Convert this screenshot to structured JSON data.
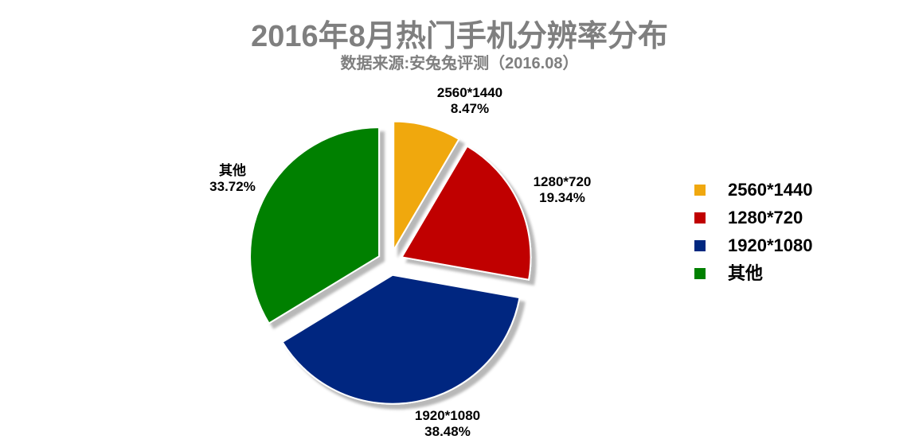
{
  "chart_data": {
    "type": "pie",
    "title": "2016年8月热门手机分辨率分布",
    "subtitle": "数据来源:安兔兔评测（2016.08）",
    "categories": [
      "2560*1440",
      "1280*720",
      "1920*1080",
      "其他"
    ],
    "values": [
      8.47,
      19.34,
      38.48,
      33.72
    ],
    "value_labels": [
      "8.47%",
      "19.34%",
      "38.48%",
      "33.72%"
    ],
    "colors": [
      "#F0A80F",
      "#C00000",
      "#002880",
      "#008000"
    ],
    "legend_placement": "right",
    "exploded": true
  }
}
